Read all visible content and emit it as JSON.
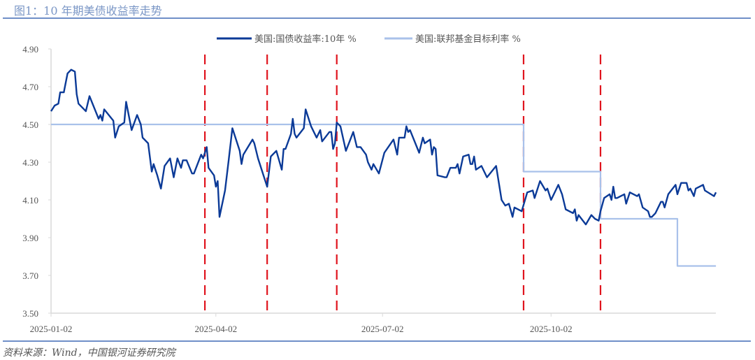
{
  "title": "图1：10 年期美债收益率走势",
  "source": "资料来源：Wind，中国银河证券研究院",
  "chart_data": {
    "type": "line",
    "title": "图1：10 年期美债收益率走势",
    "xlabel": "",
    "ylabel": "",
    "ylim": [
      3.5,
      4.9
    ],
    "yticks": [
      "4.90",
      "4.70",
      "4.50",
      "4.30",
      "4.10",
      "3.90",
      "3.70",
      "3.50"
    ],
    "xlim": [
      "2025-01-02",
      "2025-12-31"
    ],
    "xticks": [
      "2025-01-02",
      "2025-04-02",
      "2025-07-02",
      "2025-10-02"
    ],
    "grid": false,
    "legend_position": "top",
    "vertical_markers": {
      "color": "#e0141e",
      "style": "dashed",
      "dates": [
        "2025-03-27",
        "2025-04-30",
        "2025-06-07",
        "2025-09-17",
        "2025-10-29"
      ]
    },
    "series": [
      {
        "name": "美国:国债收益率:10年 %",
        "color": "#0b3a97",
        "points": [
          [
            "2025-01-02",
            4.57
          ],
          [
            "2025-01-04",
            4.6
          ],
          [
            "2025-01-06",
            4.61
          ],
          [
            "2025-01-07",
            4.67
          ],
          [
            "2025-01-09",
            4.67
          ],
          [
            "2025-01-11",
            4.77
          ],
          [
            "2025-01-13",
            4.79
          ],
          [
            "2025-01-15",
            4.78
          ],
          [
            "2025-01-16",
            4.66
          ],
          [
            "2025-01-17",
            4.61
          ],
          [
            "2025-01-21",
            4.57
          ],
          [
            "2025-01-23",
            4.65
          ],
          [
            "2025-01-28",
            4.53
          ],
          [
            "2025-01-29",
            4.55
          ],
          [
            "2025-01-30",
            4.52
          ],
          [
            "2025-01-31",
            4.58
          ],
          [
            "2025-02-05",
            4.52
          ],
          [
            "2025-02-06",
            4.43
          ],
          [
            "2025-02-08",
            4.49
          ],
          [
            "2025-02-11",
            4.51
          ],
          [
            "2025-02-12",
            4.62
          ],
          [
            "2025-02-15",
            4.47
          ],
          [
            "2025-02-18",
            4.55
          ],
          [
            "2025-02-20",
            4.5
          ],
          [
            "2025-02-21",
            4.43
          ],
          [
            "2025-02-24",
            4.4
          ],
          [
            "2025-02-26",
            4.25
          ],
          [
            "2025-02-27",
            4.29
          ],
          [
            "2025-03-01",
            4.23
          ],
          [
            "2025-03-03",
            4.16
          ],
          [
            "2025-03-05",
            4.28
          ],
          [
            "2025-03-08",
            4.32
          ],
          [
            "2025-03-10",
            4.22
          ],
          [
            "2025-03-12",
            4.32
          ],
          [
            "2025-03-14",
            4.27
          ],
          [
            "2025-03-15",
            4.31
          ],
          [
            "2025-03-17",
            4.31
          ],
          [
            "2025-03-20",
            4.24
          ],
          [
            "2025-03-21",
            4.24
          ],
          [
            "2025-03-25",
            4.34
          ],
          [
            "2025-03-26",
            4.32
          ],
          [
            "2025-03-28",
            4.38
          ],
          [
            "2025-03-29",
            4.27
          ],
          [
            "2025-04-01",
            4.23
          ],
          [
            "2025-04-02",
            4.17
          ],
          [
            "2025-04-03",
            4.2
          ],
          [
            "2025-04-04",
            4.01
          ],
          [
            "2025-04-07",
            4.15
          ],
          [
            "2025-04-09",
            4.31
          ],
          [
            "2025-04-11",
            4.48
          ],
          [
            "2025-04-15",
            4.36
          ],
          [
            "2025-04-16",
            4.29
          ],
          [
            "2025-04-17",
            4.34
          ],
          [
            "2025-04-22",
            4.42
          ],
          [
            "2025-04-23",
            4.4
          ],
          [
            "2025-04-25",
            4.32
          ],
          [
            "2025-04-28",
            4.23
          ],
          [
            "2025-04-30",
            4.17
          ],
          [
            "2025-05-02",
            4.33
          ],
          [
            "2025-05-05",
            4.36
          ],
          [
            "2025-05-08",
            4.26
          ],
          [
            "2025-05-09",
            4.37
          ],
          [
            "2025-05-10",
            4.37
          ],
          [
            "2025-05-13",
            4.45
          ],
          [
            "2025-05-14",
            4.53
          ],
          [
            "2025-05-15",
            4.45
          ],
          [
            "2025-05-16",
            4.43
          ],
          [
            "2025-05-20",
            4.48
          ],
          [
            "2025-05-21",
            4.58
          ],
          [
            "2025-05-24",
            4.49
          ],
          [
            "2025-05-27",
            4.43
          ],
          [
            "2025-05-29",
            4.47
          ],
          [
            "2025-05-30",
            4.41
          ],
          [
            "2025-06-03",
            4.46
          ],
          [
            "2025-06-04",
            4.46
          ],
          [
            "2025-06-05",
            4.37
          ],
          [
            "2025-06-06",
            4.4
          ],
          [
            "2025-06-07",
            4.51
          ],
          [
            "2025-06-09",
            4.49
          ],
          [
            "2025-06-12",
            4.36
          ],
          [
            "2025-06-14",
            4.41
          ],
          [
            "2025-06-16",
            4.46
          ],
          [
            "2025-06-18",
            4.38
          ],
          [
            "2025-06-20",
            4.38
          ],
          [
            "2025-06-23",
            4.34
          ],
          [
            "2025-06-24",
            4.3
          ],
          [
            "2025-06-26",
            4.26
          ],
          [
            "2025-06-27",
            4.29
          ],
          [
            "2025-06-30",
            4.24
          ],
          [
            "2025-07-03",
            4.35
          ],
          [
            "2025-07-08",
            4.42
          ],
          [
            "2025-07-10",
            4.34
          ],
          [
            "2025-07-11",
            4.43
          ],
          [
            "2025-07-14",
            4.43
          ],
          [
            "2025-07-15",
            4.49
          ],
          [
            "2025-07-16",
            4.46
          ],
          [
            "2025-07-17",
            4.47
          ],
          [
            "2025-07-22",
            4.35
          ],
          [
            "2025-07-24",
            4.43
          ],
          [
            "2025-07-25",
            4.4
          ],
          [
            "2025-07-28",
            4.42
          ],
          [
            "2025-07-29",
            4.34
          ],
          [
            "2025-07-30",
            4.38
          ],
          [
            "2025-07-31",
            4.37
          ],
          [
            "2025-08-01",
            4.23
          ],
          [
            "2025-08-05",
            4.22
          ],
          [
            "2025-08-06",
            4.22
          ],
          [
            "2025-08-08",
            4.27
          ],
          [
            "2025-08-11",
            4.27
          ],
          [
            "2025-08-12",
            4.29
          ],
          [
            "2025-08-13",
            4.24
          ],
          [
            "2025-08-15",
            4.33
          ],
          [
            "2025-08-18",
            4.34
          ],
          [
            "2025-08-19",
            4.29
          ],
          [
            "2025-08-20",
            4.29
          ],
          [
            "2025-08-21",
            4.33
          ],
          [
            "2025-08-22",
            4.26
          ],
          [
            "2025-08-25",
            4.28
          ],
          [
            "2025-08-28",
            4.22
          ],
          [
            "2025-09-02",
            4.28
          ],
          [
            "2025-09-05",
            4.1
          ],
          [
            "2025-09-07",
            4.07
          ],
          [
            "2025-09-09",
            4.08
          ],
          [
            "2025-09-11",
            4.01
          ],
          [
            "2025-09-12",
            4.06
          ],
          [
            "2025-09-16",
            4.04
          ],
          [
            "2025-09-19",
            4.14
          ],
          [
            "2025-09-22",
            4.15
          ],
          [
            "2025-09-23",
            4.11
          ],
          [
            "2025-09-26",
            4.2
          ],
          [
            "2025-09-29",
            4.15
          ],
          [
            "2025-09-30",
            4.16
          ],
          [
            "2025-10-02",
            4.1
          ],
          [
            "2025-10-06",
            4.18
          ],
          [
            "2025-10-08",
            4.13
          ],
          [
            "2025-10-10",
            4.05
          ],
          [
            "2025-10-14",
            4.03
          ],
          [
            "2025-10-15",
            4.05
          ],
          [
            "2025-10-16",
            3.99
          ],
          [
            "2025-10-17",
            4.02
          ],
          [
            "2025-10-21",
            3.97
          ],
          [
            "2025-10-24",
            4.02
          ],
          [
            "2025-10-26",
            4.0
          ],
          [
            "2025-10-28",
            3.99
          ],
          [
            "2025-10-29",
            4.04
          ],
          [
            "2025-10-31",
            4.11
          ],
          [
            "2025-11-03",
            4.13
          ],
          [
            "2025-11-04",
            4.1
          ],
          [
            "2025-11-05",
            4.17
          ],
          [
            "2025-11-06",
            4.11
          ],
          [
            "2025-11-07",
            4.11
          ],
          [
            "2025-11-11",
            4.13
          ],
          [
            "2025-11-12",
            4.08
          ],
          [
            "2025-11-14",
            4.14
          ],
          [
            "2025-11-18",
            4.12
          ],
          [
            "2025-11-19",
            4.13
          ],
          [
            "2025-11-21",
            4.06
          ],
          [
            "2025-11-24",
            4.04
          ],
          [
            "2025-11-25",
            4.01
          ],
          [
            "2025-11-26",
            4.01
          ],
          [
            "2025-11-28",
            4.03
          ],
          [
            "2025-12-01",
            4.09
          ],
          [
            "2025-12-02",
            4.09
          ],
          [
            "2025-12-03",
            4.06
          ],
          [
            "2025-12-05",
            4.13
          ],
          [
            "2025-12-09",
            4.18
          ],
          [
            "2025-12-10",
            4.13
          ],
          [
            "2025-12-12",
            4.19
          ],
          [
            "2025-12-15",
            4.19
          ],
          [
            "2025-12-16",
            4.15
          ],
          [
            "2025-12-17",
            4.16
          ],
          [
            "2025-12-19",
            4.12
          ],
          [
            "2025-12-20",
            4.16
          ],
          [
            "2025-12-24",
            4.18
          ],
          [
            "2025-12-25",
            4.15
          ],
          [
            "2025-12-30",
            4.12
          ],
          [
            "2025-12-31",
            4.14
          ]
        ]
      },
      {
        "name": "美国:联邦基金目标利率 %",
        "color": "#a9c1ea",
        "step": true,
        "points": [
          [
            "2025-01-02",
            4.5
          ],
          [
            "2025-09-17",
            4.5
          ],
          [
            "2025-09-17",
            4.25
          ],
          [
            "2025-10-29",
            4.25
          ],
          [
            "2025-10-29",
            4.0
          ],
          [
            "2025-12-10",
            4.0
          ],
          [
            "2025-12-10",
            3.75
          ],
          [
            "2025-12-31",
            3.75
          ]
        ]
      }
    ]
  }
}
